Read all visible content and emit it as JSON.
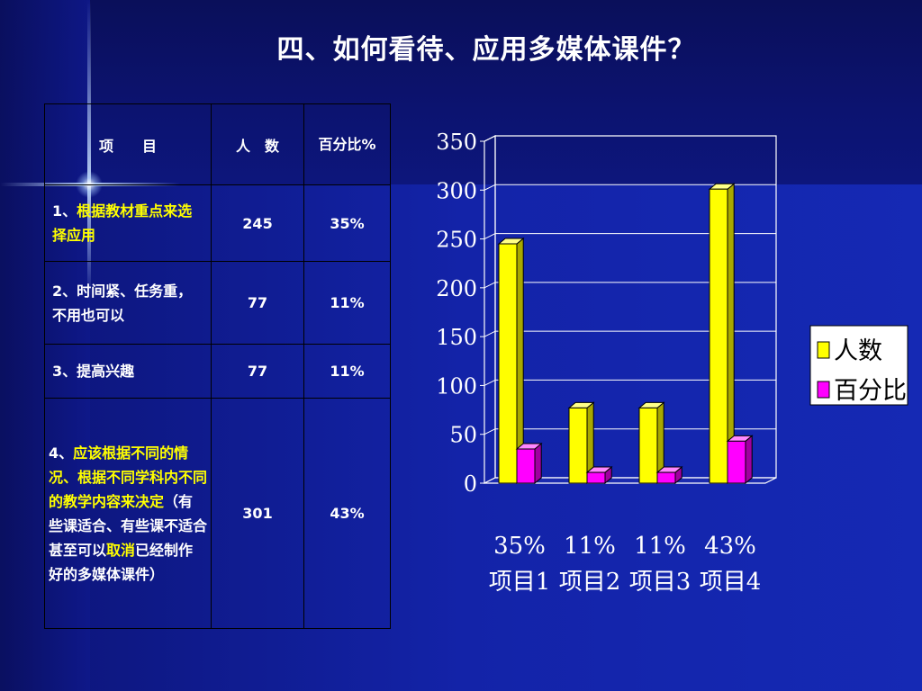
{
  "title": "四、如何看待、应用多媒体课件？",
  "table": {
    "headers": {
      "item": "项　　目",
      "count": "人　数",
      "percent": "百分比%"
    },
    "rows": [
      {
        "item_prefix": "1、",
        "item_yellow": "根据教材重点来选择应用",
        "item_rest": "",
        "count": "245",
        "percent": "35%"
      },
      {
        "item_prefix": "2、",
        "item_text": "时间紧、任务重，不用也可以",
        "count": "77",
        "percent": "11%"
      },
      {
        "item_prefix": "3、",
        "item_text": "提高兴趣",
        "count": "77",
        "percent": "11%"
      },
      {
        "item_prefix": "4、",
        "item_yellow": "应该根据不同的情况、根据不同学科内不同的教学内容来决定",
        "item_rest": "（有些课适合、有些课不适合甚至可以",
        "item_yellow2": "取消",
        "item_rest2": "已经制作好的多媒体课件）",
        "count": "301",
        "percent": "43%"
      }
    ]
  },
  "chart_data": {
    "type": "bar",
    "categories": [
      "项目1",
      "项目2",
      "项目3",
      "项目4"
    ],
    "category_labels_top": [
      "35%",
      "11%",
      "11%",
      "43%"
    ],
    "series": [
      {
        "name": "人数",
        "values": [
          245,
          77,
          77,
          301
        ],
        "color": "#ffff00"
      },
      {
        "name": "百分比",
        "values": [
          35,
          11,
          11,
          43
        ],
        "color": "#ff00ff"
      }
    ],
    "ylim": [
      0,
      350
    ],
    "yticks": [
      "0",
      "50",
      "100",
      "150",
      "200",
      "250",
      "300",
      "350"
    ],
    "grid": true,
    "legend": "right"
  }
}
